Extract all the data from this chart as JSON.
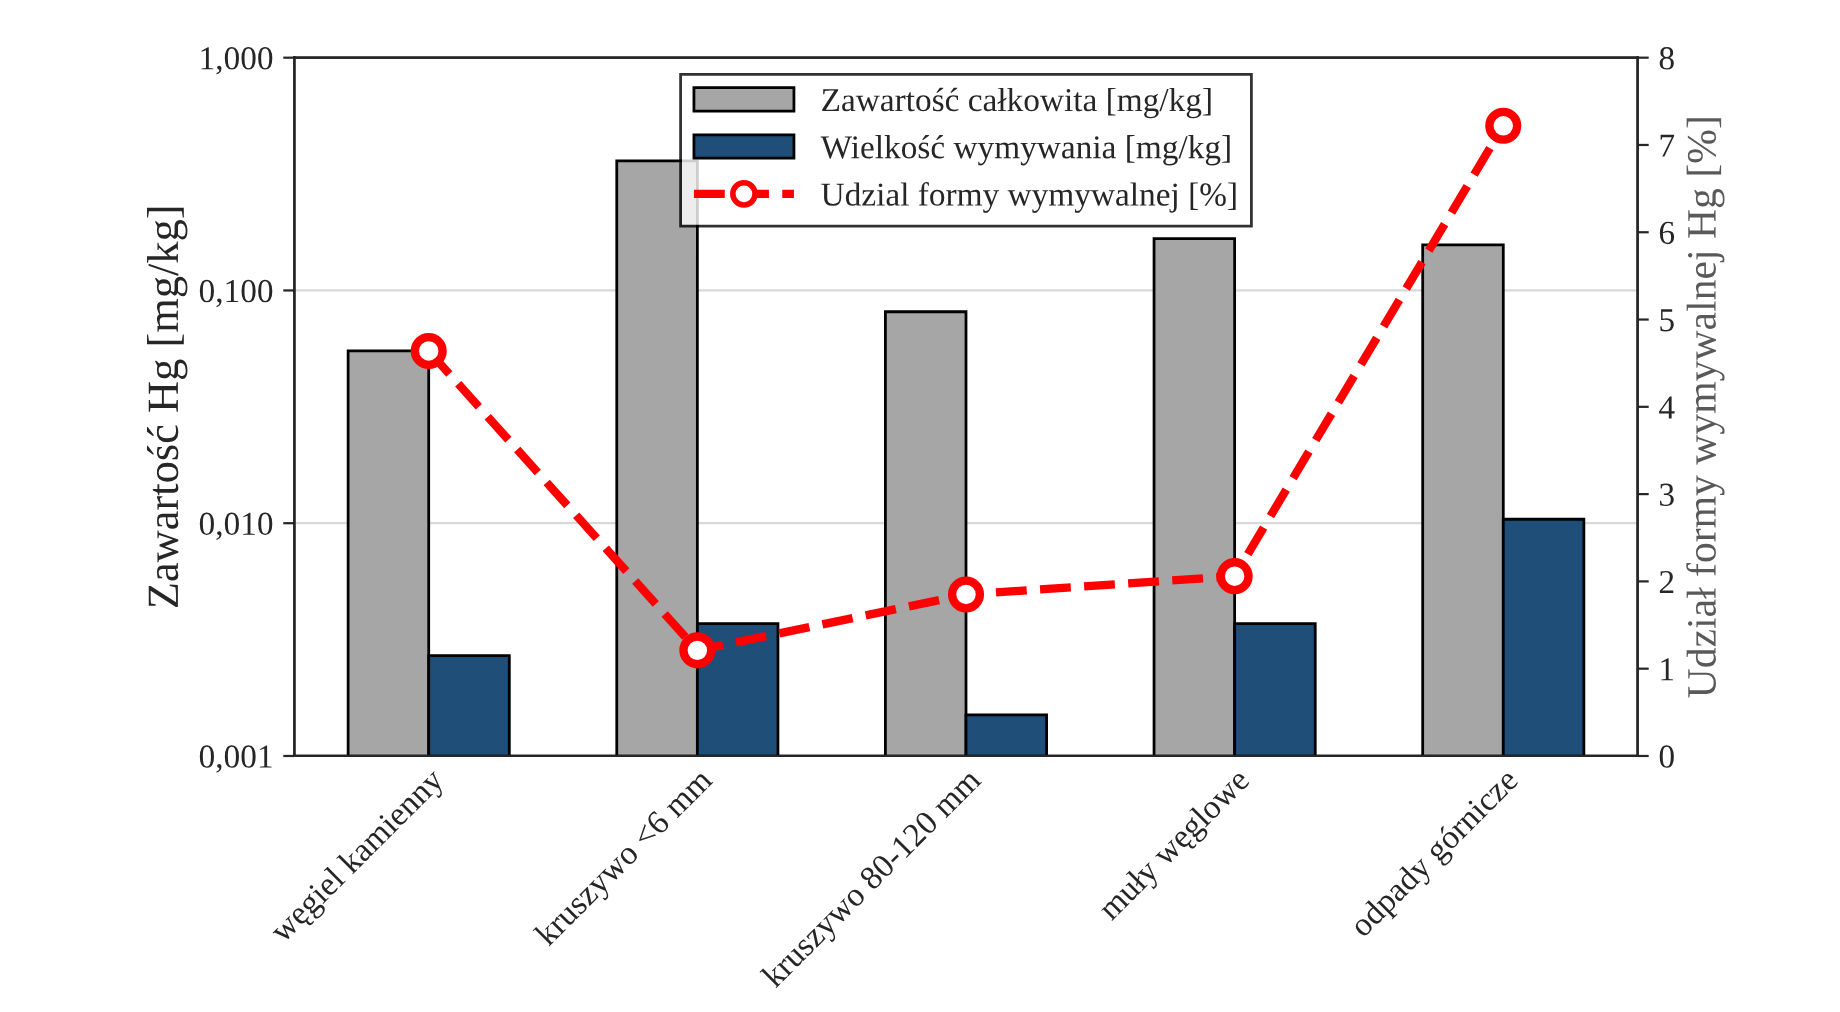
{
  "chart_data": {
    "type": "bar",
    "ylabel": "Zawartość Hg [mg/kg]",
    "y2label": "Udział formy wymywalnej Hg [%]",
    "categories": [
      "węgiel kamienny",
      "kruszywo <6 mm",
      "kruszywo 80-120 mm",
      "muły węglowe",
      "odpady górnicze"
    ],
    "series": [
      {
        "name": "Zawartość całkowita [mg/kg]",
        "color": "#a6a6a6",
        "values": [
          0.055,
          0.36,
          0.081,
          0.167,
          0.157
        ]
      },
      {
        "name": "Wielkość wymywania [mg/kg]",
        "color": "#1f4e79",
        "values": [
          0.0027,
          0.0037,
          0.0015,
          0.0037,
          0.0104
        ]
      },
      {
        "name": "Udzial formy wymywalnej [%]",
        "color": "#ff0000",
        "type": "line",
        "axis": "y2",
        "marker": "circle",
        "line_style": "dashed",
        "values": [
          4.64,
          1.21,
          1.85,
          2.06,
          7.22
        ]
      }
    ],
    "log": "y",
    "ylim": [
      0.001,
      1
    ],
    "yticks": [
      {
        "value": 0.001,
        "label": "0,001"
      },
      {
        "value": 0.01,
        "label": "0,010"
      },
      {
        "value": 0.1,
        "label": "0,100"
      },
      {
        "value": 1,
        "label": "1,000"
      }
    ],
    "y2lim": [
      0,
      8
    ],
    "y2ticks": [
      0,
      1,
      2,
      3,
      4,
      5,
      6,
      7,
      8
    ],
    "grid": "y",
    "legend": "top"
  }
}
